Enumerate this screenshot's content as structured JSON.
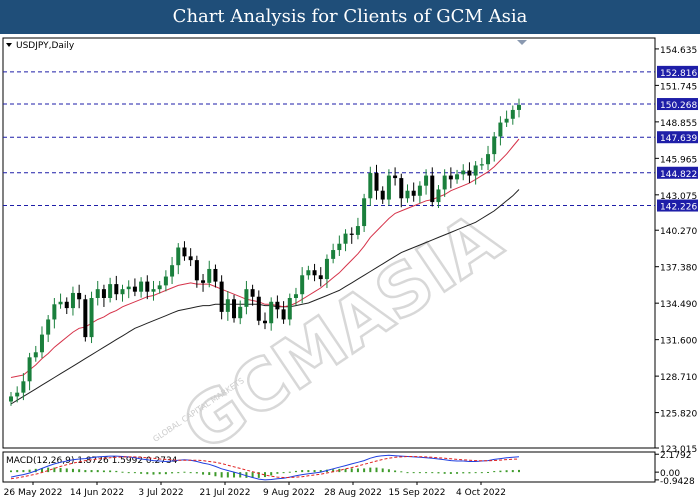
{
  "banner": {
    "title": "Chart Analysis for Clients of GCM Asia"
  },
  "colors": {
    "bull": "#1a7f3c",
    "bear": "#000000",
    "ma_fast": "#d6334a",
    "ma_slow": "#222222",
    "level_line": "#1e1ea8",
    "level_box": "#1e1ea8",
    "macd_line": "#1f3fe0",
    "signal_line": "#e02020",
    "histogram": "#3d9a2a"
  },
  "watermark": {
    "text": "GCMASIA",
    "subtext": "GLOBAL CAPITAL MARKETS"
  },
  "chart_data": [
    {
      "type": "candlestick",
      "symbol_label": "USDJPY,Daily",
      "ylim": [
        123.015,
        155.5
      ],
      "y_ticks": [
        "154.635",
        "151.745",
        "148.855",
        "145.965",
        "143.075",
        "140.270",
        "137.380",
        "134.490",
        "131.600",
        "128.710",
        "125.820",
        "123.015"
      ],
      "x_ticks": [
        "26 May 2022",
        "14 Jun 2022",
        "3 Jul 2022",
        "21 Jul 2022",
        "9 Aug 2022",
        "28 Aug 2022",
        "15 Sep 2022",
        "4 Oct 2022"
      ],
      "levels": [
        "152.816",
        "150.268",
        "147.639",
        "144.822",
        "142.226"
      ],
      "close": [
        127.1,
        127.4,
        128.3,
        130.2,
        130.6,
        132.0,
        133.2,
        134.4,
        134.6,
        134.1,
        135.3,
        134.8,
        131.8,
        134.9,
        135.6,
        134.9,
        136.0,
        135.2,
        135.6,
        135.8,
        135.4,
        136.2,
        135.4,
        135.6,
        135.9,
        136.6,
        137.5,
        138.9,
        138.2,
        137.9,
        136.3,
        136.1,
        137.2,
        136.2,
        133.8,
        134.8,
        133.3,
        134.2,
        135.6,
        135.0,
        133.1,
        132.9,
        134.6,
        134.0,
        133.2,
        134.9,
        135.2,
        136.7,
        137.1,
        136.7,
        136.4,
        138.0,
        138.7,
        139.2,
        140.0,
        139.9,
        140.6,
        142.8,
        144.8,
        143.4,
        142.7,
        144.6,
        144.4,
        142.8,
        143.4,
        143.0,
        143.8,
        144.6,
        142.5,
        143.5,
        144.6,
        144.3,
        144.7,
        145.0,
        144.6,
        145.4,
        145.5,
        146.3,
        147.7,
        148.8,
        149.1,
        149.8,
        150.2
      ],
      "ma_fast_values": [
        128.6,
        128.7,
        128.8,
        129.2,
        129.6,
        130.1,
        130.5,
        131.0,
        131.4,
        131.8,
        132.2,
        132.5,
        132.6,
        132.9,
        133.2,
        133.4,
        133.7,
        133.9,
        134.2,
        134.4,
        134.6,
        134.8,
        135.0,
        135.1,
        135.3,
        135.5,
        135.7,
        135.9,
        136.0,
        136.1,
        136.0,
        136.0,
        136.0,
        135.8,
        135.6,
        135.4,
        135.2,
        135.0,
        134.8,
        134.7,
        134.6,
        134.4,
        134.4,
        134.3,
        134.2,
        134.3,
        134.5,
        134.8,
        135.1,
        135.4,
        135.7,
        136.1,
        136.5,
        136.9,
        137.4,
        137.9,
        138.4,
        139.0,
        139.7,
        140.2,
        140.7,
        141.2,
        141.6,
        141.8,
        142.0,
        142.2,
        142.4,
        142.6,
        142.7,
        142.9,
        143.1,
        143.4,
        143.6,
        143.8,
        144.0,
        144.3,
        144.6,
        144.9,
        145.3,
        145.8,
        146.3,
        146.9,
        147.5
      ],
      "ma_slow_values": [
        126.5,
        126.8,
        127.1,
        127.4,
        127.7,
        128.0,
        128.3,
        128.6,
        128.9,
        129.2,
        129.5,
        129.8,
        130.1,
        130.4,
        130.7,
        131.0,
        131.3,
        131.6,
        131.9,
        132.2,
        132.5,
        132.7,
        132.9,
        133.1,
        133.3,
        133.5,
        133.7,
        133.9,
        134.0,
        134.1,
        134.2,
        134.3,
        134.3,
        134.4,
        134.4,
        134.4,
        134.4,
        134.4,
        134.4,
        134.4,
        134.4,
        134.3,
        134.3,
        134.2,
        134.2,
        134.2,
        134.3,
        134.4,
        134.5,
        134.7,
        134.9,
        135.1,
        135.3,
        135.5,
        135.8,
        136.1,
        136.4,
        136.7,
        137.0,
        137.3,
        137.6,
        137.9,
        138.2,
        138.5,
        138.7,
        138.9,
        139.1,
        139.3,
        139.5,
        139.7,
        139.9,
        140.1,
        140.3,
        140.5,
        140.7,
        140.9,
        141.2,
        141.5,
        141.8,
        142.2,
        142.6,
        143.0,
        143.5
      ]
    },
    {
      "type": "macd",
      "label": "MACD(12,26,9) 1.8726 1.5992 0.2734",
      "ylim": [
        -1.2,
        2.45
      ],
      "y_ticks": [
        "2.1792",
        "0.00",
        "-0.9428"
      ],
      "macd": [
        -0.6,
        -0.45,
        -0.3,
        -0.1,
        0.15,
        0.45,
        0.75,
        1.0,
        1.2,
        1.35,
        1.5,
        1.6,
        1.65,
        1.75,
        1.85,
        1.9,
        1.95,
        1.95,
        1.9,
        1.85,
        1.75,
        1.6,
        1.5,
        1.4,
        1.35,
        1.3,
        1.35,
        1.45,
        1.5,
        1.45,
        1.3,
        1.1,
        0.95,
        0.7,
        0.4,
        0.2,
        0.0,
        -0.2,
        -0.45,
        -0.65,
        -0.85,
        -0.95,
        -0.9,
        -0.8,
        -0.75,
        -0.6,
        -0.45,
        -0.3,
        -0.2,
        -0.1,
        0.0,
        0.2,
        0.4,
        0.6,
        0.8,
        1.0,
        1.2,
        1.4,
        1.7,
        1.9,
        2.0,
        2.05,
        2.0,
        1.95,
        1.9,
        1.85,
        1.8,
        1.75,
        1.7,
        1.6,
        1.5,
        1.4,
        1.35,
        1.35,
        1.3,
        1.3,
        1.35,
        1.4,
        1.55,
        1.65,
        1.75,
        1.82,
        1.87
      ],
      "signal": [
        -0.8,
        -0.7,
        -0.55,
        -0.4,
        -0.25,
        -0.05,
        0.2,
        0.45,
        0.7,
        0.9,
        1.1,
        1.25,
        1.4,
        1.5,
        1.6,
        1.7,
        1.75,
        1.8,
        1.85,
        1.85,
        1.85,
        1.8,
        1.75,
        1.7,
        1.6,
        1.55,
        1.5,
        1.45,
        1.45,
        1.45,
        1.45,
        1.4,
        1.3,
        1.2,
        1.05,
        0.85,
        0.65,
        0.45,
        0.25,
        0.05,
        -0.15,
        -0.35,
        -0.5,
        -0.6,
        -0.65,
        -0.65,
        -0.6,
        -0.55,
        -0.45,
        -0.35,
        -0.25,
        -0.1,
        0.05,
        0.2,
        0.4,
        0.55,
        0.75,
        0.95,
        1.15,
        1.35,
        1.55,
        1.7,
        1.8,
        1.85,
        1.9,
        1.9,
        1.88,
        1.85,
        1.8,
        1.75,
        1.7,
        1.62,
        1.55,
        1.5,
        1.45,
        1.4,
        1.38,
        1.38,
        1.42,
        1.47,
        1.52,
        1.57,
        1.6
      ]
    }
  ]
}
